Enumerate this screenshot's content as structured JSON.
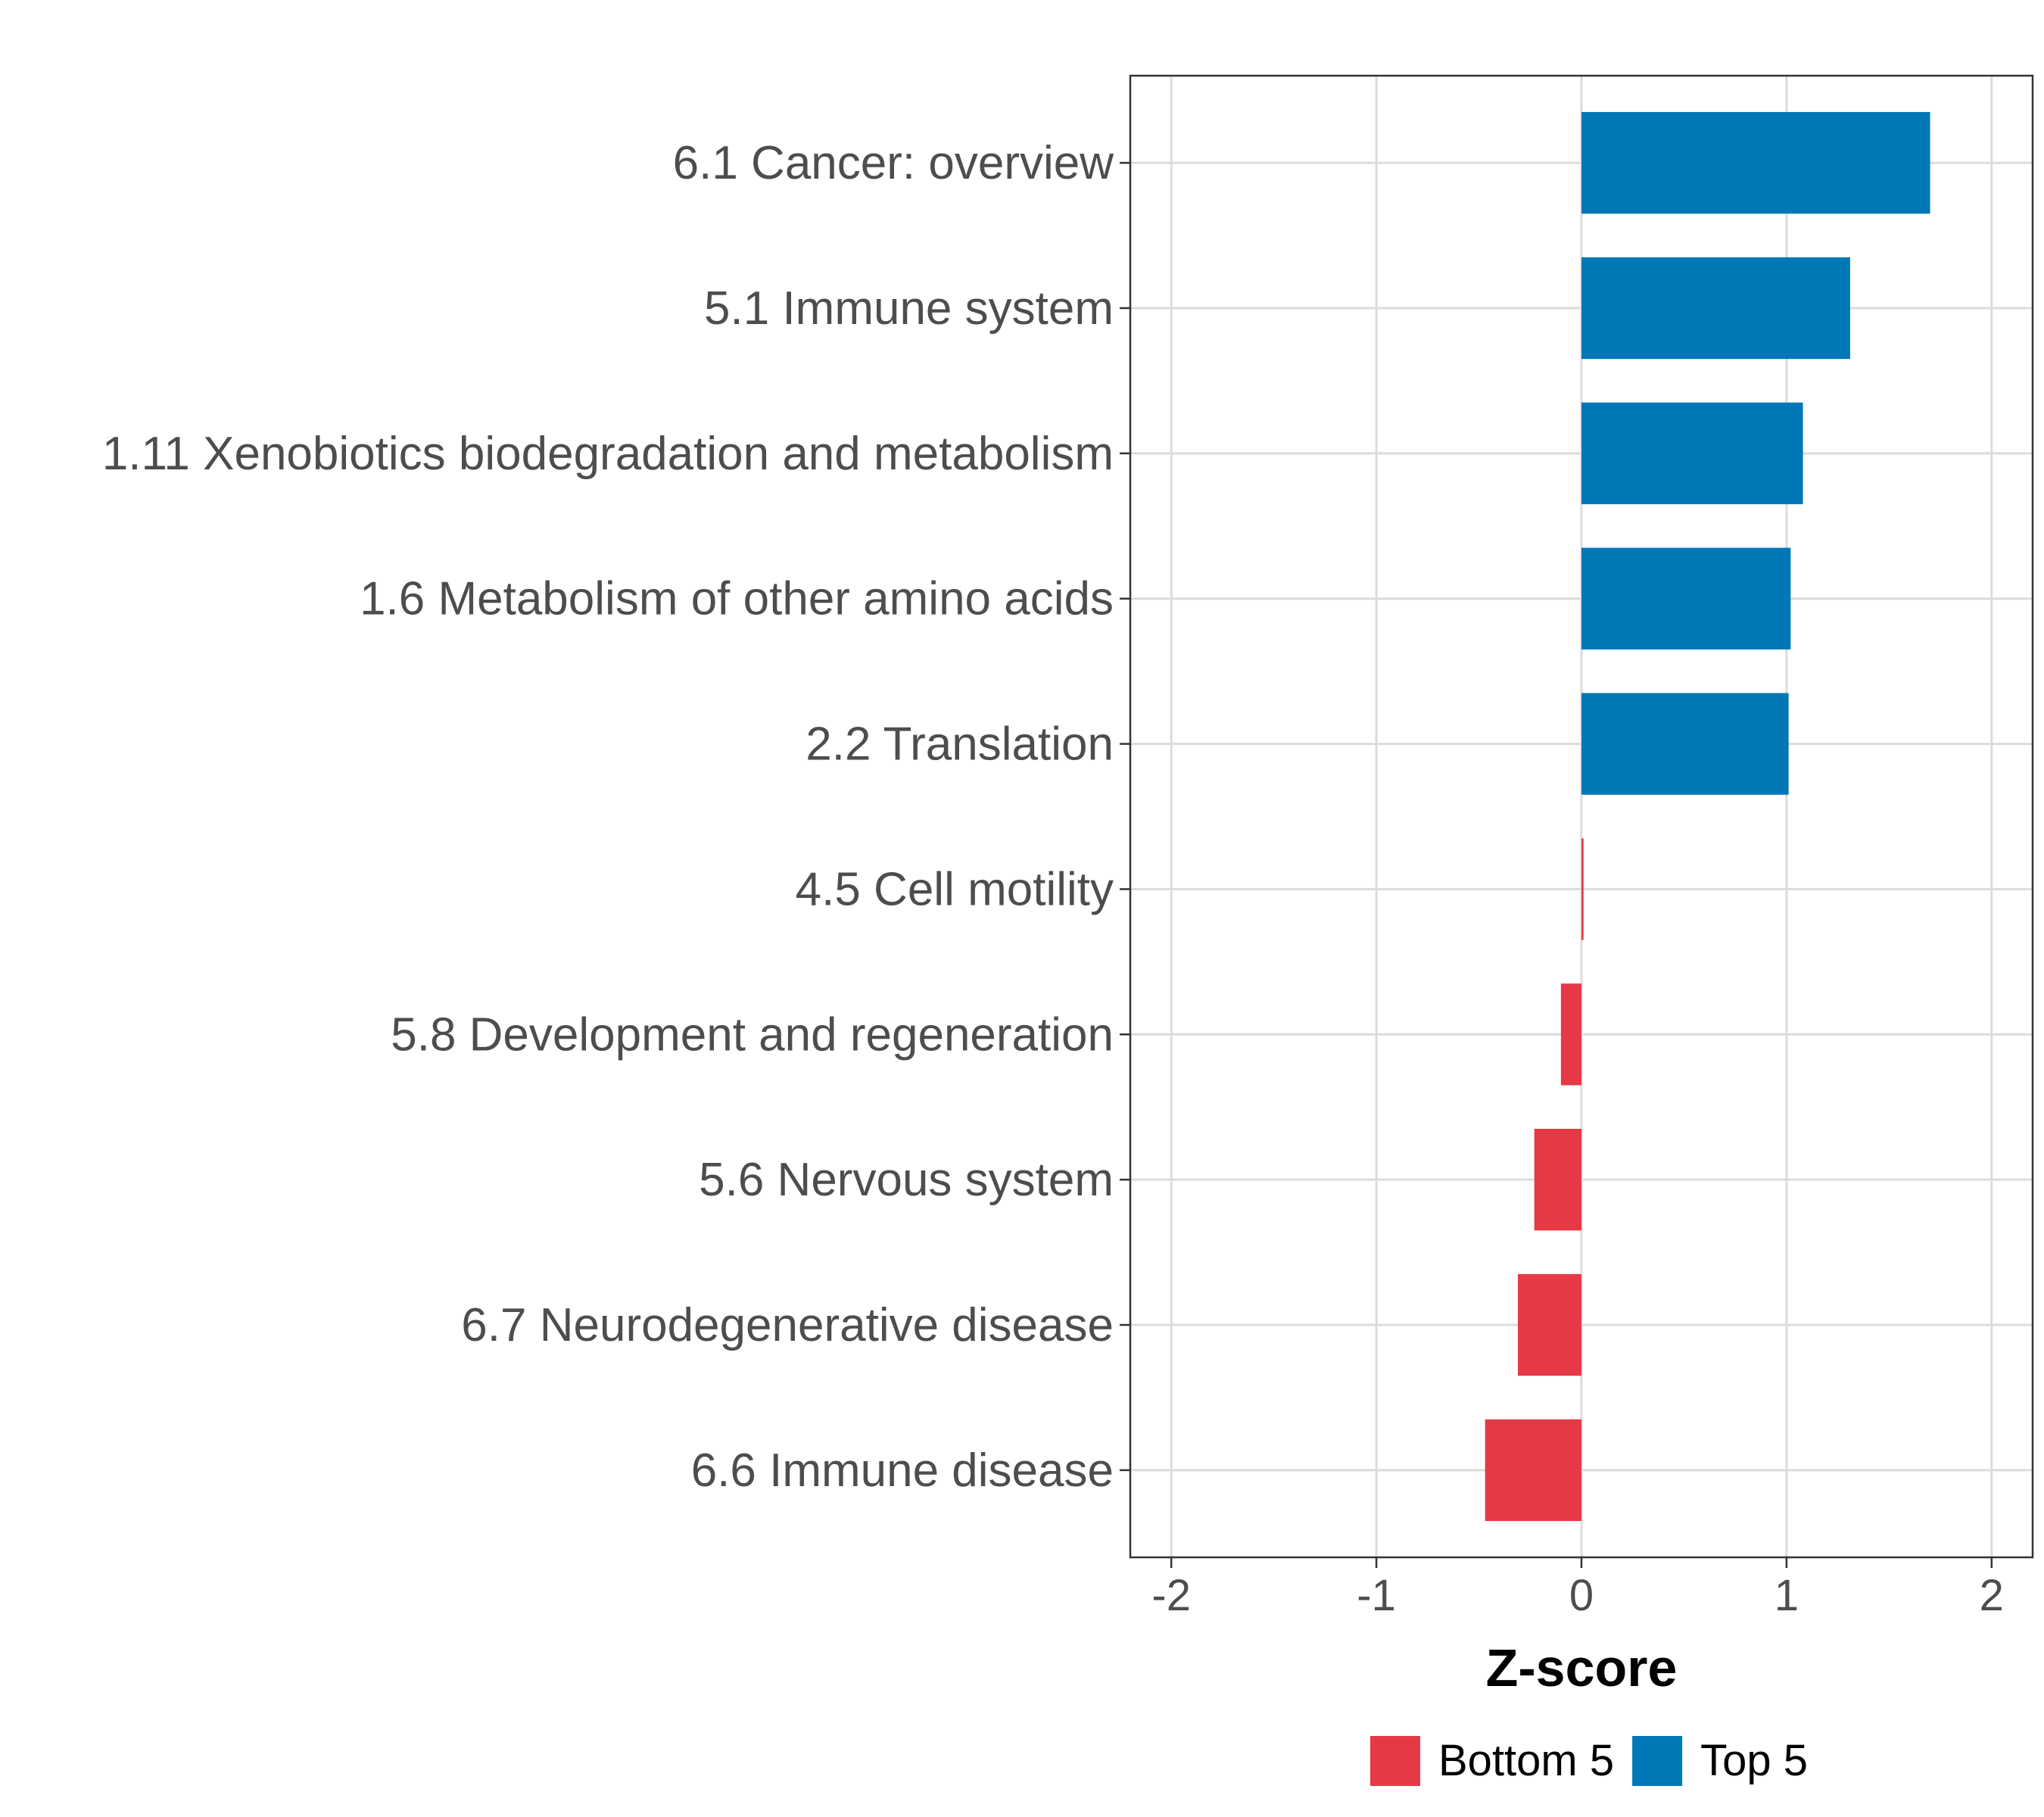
{
  "chart_data": {
    "type": "bar",
    "orientation": "horizontal",
    "title": "",
    "xlabel": "Z-score",
    "ylabel": "",
    "xlim": [
      -2.2,
      2.2
    ],
    "x_ticks": [
      -2,
      -1,
      0,
      1,
      2
    ],
    "x_tick_labels": [
      "-2",
      "-1",
      "0",
      "1",
      "2"
    ],
    "grid": true,
    "legend_position": "bottom",
    "categories": [
      "6.1 Cancer: overview",
      "5.1 Immune system",
      "1.11 Xenobiotics biodegradation and metabolism",
      "1.6 Metabolism of other amino acids",
      "2.2 Translation",
      "4.5 Cell motility",
      "5.8 Development and regeneration",
      "5.6 Nervous system",
      "6.7 Neurodegenerative disease",
      "6.6 Immune disease"
    ],
    "values": [
      1.7,
      1.31,
      1.08,
      1.02,
      1.01,
      0.01,
      -0.1,
      -0.23,
      -0.31,
      -0.47
    ],
    "groups": [
      "Top 5",
      "Top 5",
      "Top 5",
      "Top 5",
      "Top 5",
      "Bottom 5",
      "Bottom 5",
      "Bottom 5",
      "Bottom 5",
      "Bottom 5"
    ],
    "legend": [
      {
        "name": "Bottom 5",
        "color": "#e63946"
      },
      {
        "name": "Top 5",
        "color": "#0077b6"
      }
    ]
  }
}
